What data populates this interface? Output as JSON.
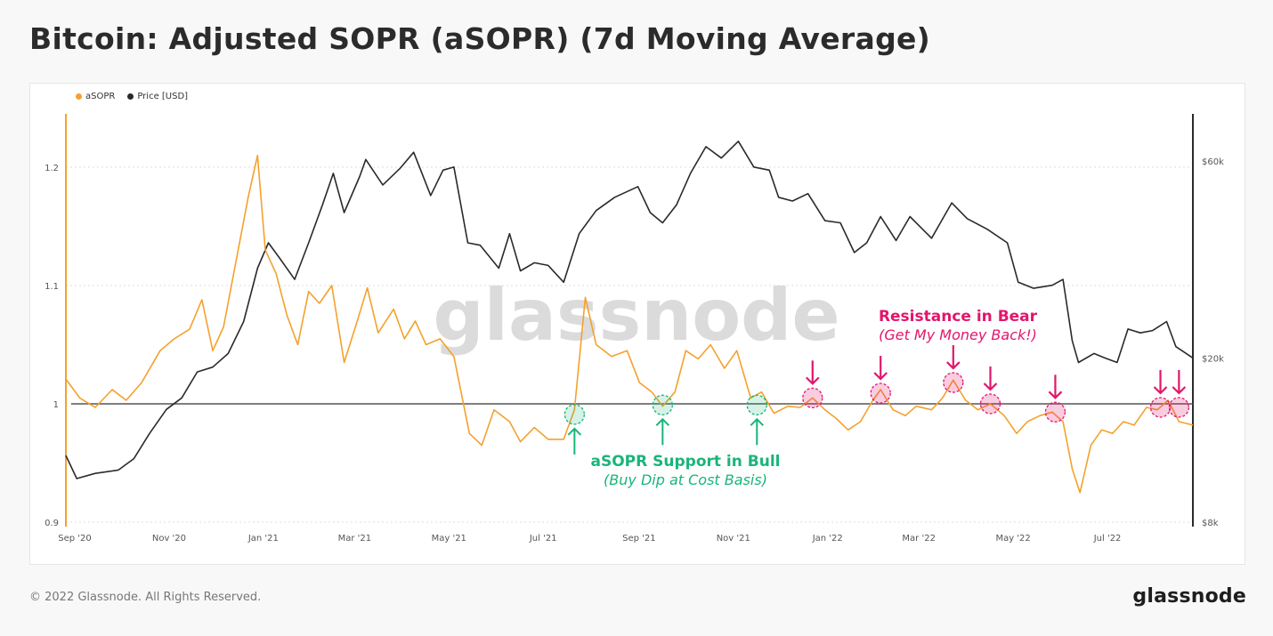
{
  "title": "Bitcoin: Adjusted SOPR (aSOPR) (7d Moving Average)",
  "footer": {
    "copyright": "© 2022 Glassnode. All Rights Reserved.",
    "brand": "glassnode"
  },
  "watermark": "glassnode",
  "colors": {
    "asopr": "#f4a12d",
    "price": "#2a2a2a",
    "bull": "#19b57a",
    "bear": "#e2166d",
    "grid": "#dcdcdc"
  },
  "chart_data": {
    "type": "line",
    "legend": [
      "aSOPR",
      "Price [USD]"
    ],
    "legend_placement": "top-left",
    "x_ticks": [
      "Sep '20",
      "Nov '20",
      "Jan '21",
      "Mar '21",
      "May '21",
      "Jul '21",
      "Sep '21",
      "Nov '21",
      "Jan '22",
      "Mar '22",
      "May '22",
      "Jul '22"
    ],
    "y_left": {
      "ticks": [
        "0.9",
        "1",
        "1.1",
        "1.2"
      ],
      "range": [
        0.9,
        1.2
      ],
      "reference_line": 1.0
    },
    "y_right": {
      "ticks": [
        "$8k",
        "$20k",
        "$60k"
      ],
      "scale": "log",
      "range": [
        8000,
        60000
      ]
    },
    "x_range": [
      "2020-09-01",
      "2022-08-31"
    ],
    "series": [
      {
        "name": "aSOPR",
        "points": [
          [
            "2020-09-01",
            1.021
          ],
          [
            "2020-09-10",
            1.005
          ],
          [
            "2020-09-20",
            0.997
          ],
          [
            "2020-10-01",
            1.012
          ],
          [
            "2020-10-10",
            1.003
          ],
          [
            "2020-10-20",
            1.018
          ],
          [
            "2020-11-01",
            1.045
          ],
          [
            "2020-11-10",
            1.055
          ],
          [
            "2020-11-20",
            1.063
          ],
          [
            "2020-11-28",
            1.088
          ],
          [
            "2020-12-05",
            1.045
          ],
          [
            "2020-12-12",
            1.065
          ],
          [
            "2020-12-20",
            1.12
          ],
          [
            "2020-12-28",
            1.175
          ],
          [
            "2021-01-03",
            1.21
          ],
          [
            "2021-01-08",
            1.13
          ],
          [
            "2021-01-15",
            1.11
          ],
          [
            "2021-01-22",
            1.075
          ],
          [
            "2021-01-29",
            1.05
          ],
          [
            "2021-02-05",
            1.095
          ],
          [
            "2021-02-12",
            1.085
          ],
          [
            "2021-02-20",
            1.1
          ],
          [
            "2021-02-28",
            1.035
          ],
          [
            "2021-03-08",
            1.068
          ],
          [
            "2021-03-15",
            1.098
          ],
          [
            "2021-03-22",
            1.06
          ],
          [
            "2021-04-01",
            1.08
          ],
          [
            "2021-04-08",
            1.055
          ],
          [
            "2021-04-15",
            1.07
          ],
          [
            "2021-04-22",
            1.05
          ],
          [
            "2021-05-01",
            1.055
          ],
          [
            "2021-05-10",
            1.04
          ],
          [
            "2021-05-20",
            0.975
          ],
          [
            "2021-05-28",
            0.965
          ],
          [
            "2021-06-05",
            0.995
          ],
          [
            "2021-06-15",
            0.985
          ],
          [
            "2021-06-22",
            0.968
          ],
          [
            "2021-07-01",
            0.98
          ],
          [
            "2021-07-10",
            0.97
          ],
          [
            "2021-07-20",
            0.97
          ],
          [
            "2021-07-27",
            0.995
          ],
          [
            "2021-08-03",
            1.09
          ],
          [
            "2021-08-10",
            1.05
          ],
          [
            "2021-08-20",
            1.04
          ],
          [
            "2021-08-30",
            1.045
          ],
          [
            "2021-09-07",
            1.018
          ],
          [
            "2021-09-15",
            1.01
          ],
          [
            "2021-09-22",
            0.998
          ],
          [
            "2021-09-30",
            1.01
          ],
          [
            "2021-10-07",
            1.045
          ],
          [
            "2021-10-15",
            1.038
          ],
          [
            "2021-10-23",
            1.05
          ],
          [
            "2021-11-01",
            1.03
          ],
          [
            "2021-11-09",
            1.045
          ],
          [
            "2021-11-18",
            1.005
          ],
          [
            "2021-11-25",
            1.01
          ],
          [
            "2021-12-03",
            0.992
          ],
          [
            "2021-12-12",
            0.998
          ],
          [
            "2021-12-20",
            0.997
          ],
          [
            "2021-12-28",
            1.005
          ],
          [
            "2022-01-05",
            0.995
          ],
          [
            "2022-01-12",
            0.988
          ],
          [
            "2022-01-20",
            0.978
          ],
          [
            "2022-01-28",
            0.985
          ],
          [
            "2022-02-05",
            1.003
          ],
          [
            "2022-02-10",
            1.012
          ],
          [
            "2022-02-18",
            0.995
          ],
          [
            "2022-02-26",
            0.99
          ],
          [
            "2022-03-05",
            0.998
          ],
          [
            "2022-03-15",
            0.995
          ],
          [
            "2022-03-22",
            1.005
          ],
          [
            "2022-03-29",
            1.02
          ],
          [
            "2022-04-06",
            1.003
          ],
          [
            "2022-04-14",
            0.995
          ],
          [
            "2022-04-22",
            1.0
          ],
          [
            "2022-05-01",
            0.99
          ],
          [
            "2022-05-09",
            0.975
          ],
          [
            "2022-05-16",
            0.985
          ],
          [
            "2022-05-24",
            0.99
          ],
          [
            "2022-06-01",
            0.993
          ],
          [
            "2022-06-08",
            0.985
          ],
          [
            "2022-06-14",
            0.945
          ],
          [
            "2022-06-19",
            0.925
          ],
          [
            "2022-06-26",
            0.965
          ],
          [
            "2022-07-03",
            0.978
          ],
          [
            "2022-07-10",
            0.975
          ],
          [
            "2022-07-17",
            0.985
          ],
          [
            "2022-07-24",
            0.982
          ],
          [
            "2022-08-01",
            0.997
          ],
          [
            "2022-08-08",
            0.995
          ],
          [
            "2022-08-15",
            1.003
          ],
          [
            "2022-08-22",
            0.985
          ],
          [
            "2022-08-31",
            0.982
          ]
        ]
      },
      {
        "name": "Price [USD]",
        "points": [
          [
            "2020-09-01",
            11600
          ],
          [
            "2020-09-08",
            10200
          ],
          [
            "2020-09-20",
            10500
          ],
          [
            "2020-10-05",
            10700
          ],
          [
            "2020-10-15",
            11400
          ],
          [
            "2020-10-25",
            13100
          ],
          [
            "2020-11-05",
            15000
          ],
          [
            "2020-11-15",
            16000
          ],
          [
            "2020-11-25",
            18500
          ],
          [
            "2020-12-05",
            19000
          ],
          [
            "2020-12-15",
            20500
          ],
          [
            "2020-12-25",
            24500
          ],
          [
            "2021-01-03",
            33000
          ],
          [
            "2021-01-10",
            38000
          ],
          [
            "2021-01-17",
            35000
          ],
          [
            "2021-01-27",
            31000
          ],
          [
            "2021-02-05",
            38000
          ],
          [
            "2021-02-14",
            47000
          ],
          [
            "2021-02-21",
            56000
          ],
          [
            "2021-02-28",
            45000
          ],
          [
            "2021-03-10",
            55000
          ],
          [
            "2021-03-14",
            60500
          ],
          [
            "2021-03-25",
            52500
          ],
          [
            "2021-04-05",
            57500
          ],
          [
            "2021-04-14",
            63000
          ],
          [
            "2021-04-25",
            49500
          ],
          [
            "2021-05-03",
            57000
          ],
          [
            "2021-05-10",
            58000
          ],
          [
            "2021-05-19",
            38000
          ],
          [
            "2021-05-27",
            37500
          ],
          [
            "2021-06-08",
            33000
          ],
          [
            "2021-06-15",
            40000
          ],
          [
            "2021-06-22",
            32500
          ],
          [
            "2021-07-01",
            34000
          ],
          [
            "2021-07-10",
            33500
          ],
          [
            "2021-07-20",
            30500
          ],
          [
            "2021-07-30",
            40000
          ],
          [
            "2021-08-10",
            45500
          ],
          [
            "2021-08-22",
            49000
          ],
          [
            "2021-09-06",
            52000
          ],
          [
            "2021-09-14",
            45000
          ],
          [
            "2021-09-22",
            42500
          ],
          [
            "2021-10-01",
            47000
          ],
          [
            "2021-10-10",
            56000
          ],
          [
            "2021-10-20",
            65000
          ],
          [
            "2021-10-30",
            61000
          ],
          [
            "2021-11-10",
            67000
          ],
          [
            "2021-11-20",
            58000
          ],
          [
            "2021-11-30",
            57000
          ],
          [
            "2021-12-06",
            49000
          ],
          [
            "2021-12-15",
            48000
          ],
          [
            "2021-12-25",
            50000
          ],
          [
            "2022-01-05",
            43000
          ],
          [
            "2022-01-15",
            42500
          ],
          [
            "2022-01-24",
            36000
          ],
          [
            "2022-02-01",
            38000
          ],
          [
            "2022-02-10",
            44000
          ],
          [
            "2022-02-20",
            38500
          ],
          [
            "2022-03-01",
            44000
          ],
          [
            "2022-03-15",
            39000
          ],
          [
            "2022-03-28",
            47500
          ],
          [
            "2022-04-07",
            43500
          ],
          [
            "2022-04-20",
            41000
          ],
          [
            "2022-05-03",
            38000
          ],
          [
            "2022-05-10",
            30500
          ],
          [
            "2022-05-20",
            29500
          ],
          [
            "2022-06-01",
            30000
          ],
          [
            "2022-06-08",
            31000
          ],
          [
            "2022-06-14",
            22000
          ],
          [
            "2022-06-18",
            19500
          ],
          [
            "2022-06-28",
            20500
          ],
          [
            "2022-07-05",
            20000
          ],
          [
            "2022-07-13",
            19500
          ],
          [
            "2022-07-20",
            23500
          ],
          [
            "2022-07-28",
            23000
          ],
          [
            "2022-08-05",
            23300
          ],
          [
            "2022-08-14",
            24500
          ],
          [
            "2022-08-20",
            21300
          ],
          [
            "2022-08-31",
            20000
          ]
        ]
      }
    ],
    "annotations": [
      {
        "text": "aSOPR Support in Bull",
        "subtext": "(Buy Dip at Cost Basis)",
        "kind": "bull",
        "markers": [
          [
            "2021-07-27",
            0.991
          ],
          [
            "2021-09-22",
            0.999
          ],
          [
            "2021-11-22",
            0.999
          ]
        ],
        "arrow": "up"
      },
      {
        "text": "Resistance in Bear",
        "subtext": "(Get My Money Back!)",
        "kind": "bear",
        "markers": [
          [
            "2021-12-28",
            1.005
          ],
          [
            "2022-02-10",
            1.009
          ],
          [
            "2022-03-29",
            1.018
          ],
          [
            "2022-04-22",
            1.0
          ],
          [
            "2022-06-03",
            0.993
          ],
          [
            "2022-08-10",
            0.997
          ],
          [
            "2022-08-22",
            0.997
          ]
        ],
        "arrow": "down"
      }
    ]
  }
}
